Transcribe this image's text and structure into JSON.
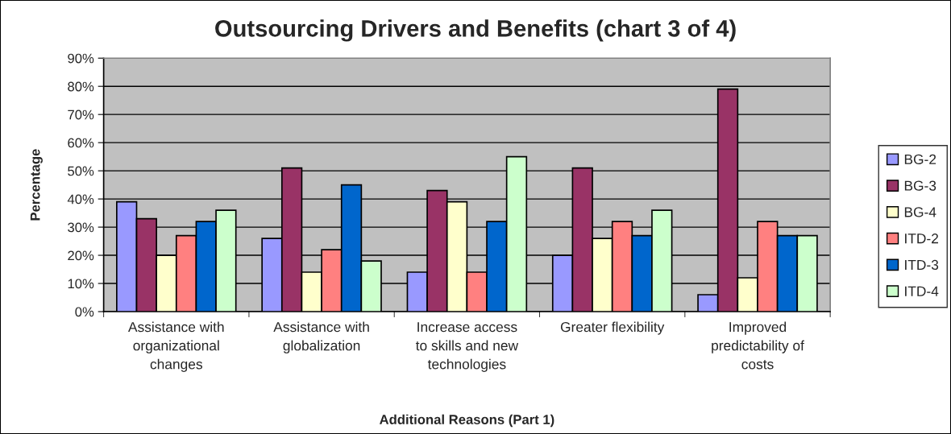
{
  "chart_data": {
    "type": "bar",
    "title": "Outsourcing Drivers and Benefits (chart 3 of 4)",
    "xlabel": "Additional Reasons (Part 1)",
    "ylabel": "Percentage",
    "categories": [
      "Assistance with\norganizational\nchanges",
      "Assistance with\nglobalization",
      "Increase access\nto skills and new\ntechnologies",
      "Greater flexibility",
      "Improved\npredictability of\ncosts"
    ],
    "series": [
      {
        "name": "BG-2",
        "color": "#9999ff",
        "values": [
          39,
          26,
          14,
          20,
          6
        ]
      },
      {
        "name": "BG-3",
        "color": "#993366",
        "values": [
          33,
          51,
          43,
          51,
          79
        ]
      },
      {
        "name": "BG-4",
        "color": "#ffffcc",
        "values": [
          20,
          14,
          39,
          26,
          12
        ]
      },
      {
        "name": "ITD-2",
        "color": "#ff8080",
        "values": [
          27,
          22,
          14,
          32,
          32
        ]
      },
      {
        "name": "ITD-3",
        "color": "#0066cc",
        "values": [
          32,
          45,
          32,
          27,
          27
        ]
      },
      {
        "name": "ITD-4",
        "color": "#ccffcc",
        "values": [
          36,
          18,
          55,
          36,
          27
        ]
      }
    ],
    "ylim": [
      0,
      90
    ],
    "yticks": [
      {
        "value": 0,
        "label": "0%"
      },
      {
        "value": 10,
        "label": "10%"
      },
      {
        "value": 20,
        "label": "20%"
      },
      {
        "value": 30,
        "label": "30%"
      },
      {
        "value": 40,
        "label": "40%"
      },
      {
        "value": 50,
        "label": "50%"
      },
      {
        "value": 60,
        "label": "60%"
      },
      {
        "value": 70,
        "label": "70%"
      },
      {
        "value": 80,
        "label": "80%"
      },
      {
        "value": 90,
        "label": "90%"
      }
    ],
    "grid": "y",
    "legend": "right"
  }
}
